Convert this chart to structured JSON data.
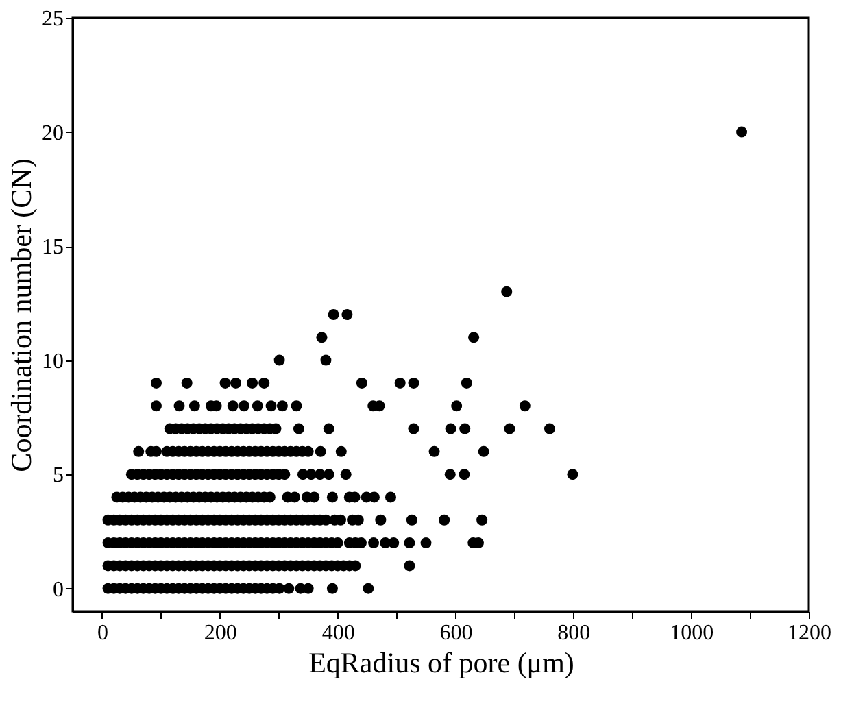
{
  "chart_data": {
    "type": "scatter",
    "xlabel": "EqRadius of pore (μm)",
    "ylabel": "Coordination number (CN)",
    "xlim": [
      -50,
      1200
    ],
    "ylim": [
      -1,
      25
    ],
    "xticks": [
      0,
      {
        "value": 100,
        "label": null
      },
      200,
      {
        "value": 300,
        "label": null
      },
      400,
      {
        "value": 500,
        "label": null
      },
      600,
      {
        "value": 700,
        "label": null
      },
      800,
      {
        "value": 900,
        "label": null
      },
      1000,
      {
        "value": 1100,
        "label": null
      },
      1200
    ],
    "yticks": [
      0,
      5,
      10,
      15,
      20,
      25
    ],
    "grid": false,
    "legend": false,
    "marker": "circle",
    "series": [
      {
        "color": "#000000",
        "x": [
          10,
          20,
          30,
          40,
          50,
          60,
          70,
          80,
          90,
          100,
          110,
          120,
          130,
          140,
          150,
          160,
          170,
          180,
          190,
          200,
          210,
          220,
          230,
          240,
          250,
          260,
          270,
          280,
          290,
          301,
          317,
          337,
          350,
          391,
          452
        ],
        "values": [
          0,
          0,
          0,
          0,
          0,
          0,
          0,
          0,
          0,
          0,
          0,
          0,
          0,
          0,
          0,
          0,
          0,
          0,
          0,
          0,
          0,
          0,
          0,
          0,
          0,
          0,
          0,
          0,
          0,
          0,
          0,
          0,
          0,
          0,
          0
        ]
      },
      {
        "color": "#000000",
        "x": [
          10,
          20,
          30,
          40,
          50,
          60,
          70,
          80,
          90,
          100,
          110,
          120,
          130,
          140,
          150,
          160,
          170,
          180,
          190,
          200,
          210,
          220,
          230,
          240,
          250,
          260,
          270,
          280,
          290,
          300,
          310,
          320,
          330,
          340,
          350,
          360,
          370,
          380,
          390,
          400,
          410,
          420,
          430,
          522
        ],
        "values": [
          1,
          1,
          1,
          1,
          1,
          1,
          1,
          1,
          1,
          1,
          1,
          1,
          1,
          1,
          1,
          1,
          1,
          1,
          1,
          1,
          1,
          1,
          1,
          1,
          1,
          1,
          1,
          1,
          1,
          1,
          1,
          1,
          1,
          1,
          1,
          1,
          1,
          1,
          1,
          1,
          1,
          1,
          1,
          1
        ]
      },
      {
        "color": "#000000",
        "x": [
          10,
          20,
          30,
          40,
          50,
          60,
          70,
          80,
          90,
          100,
          110,
          120,
          130,
          140,
          150,
          160,
          170,
          180,
          190,
          200,
          210,
          220,
          230,
          240,
          250,
          260,
          270,
          280,
          290,
          300,
          310,
          320,
          330,
          340,
          350,
          360,
          370,
          380,
          390,
          400,
          420,
          430,
          440,
          461,
          481,
          495,
          522,
          550,
          630,
          639
        ],
        "values": [
          2,
          2,
          2,
          2,
          2,
          2,
          2,
          2,
          2,
          2,
          2,
          2,
          2,
          2,
          2,
          2,
          2,
          2,
          2,
          2,
          2,
          2,
          2,
          2,
          2,
          2,
          2,
          2,
          2,
          2,
          2,
          2,
          2,
          2,
          2,
          2,
          2,
          2,
          2,
          2,
          2,
          2,
          2,
          2,
          2,
          2,
          2,
          2,
          2,
          2
        ]
      },
      {
        "color": "#000000",
        "x": [
          10,
          20,
          30,
          40,
          50,
          60,
          70,
          80,
          90,
          100,
          110,
          120,
          130,
          140,
          150,
          160,
          170,
          180,
          190,
          200,
          210,
          220,
          230,
          240,
          250,
          260,
          270,
          280,
          290,
          300,
          310,
          320,
          330,
          340,
          350,
          360,
          370,
          380,
          395,
          405,
          425,
          435,
          473,
          526,
          581,
          645
        ],
        "values": [
          3,
          3,
          3,
          3,
          3,
          3,
          3,
          3,
          3,
          3,
          3,
          3,
          3,
          3,
          3,
          3,
          3,
          3,
          3,
          3,
          3,
          3,
          3,
          3,
          3,
          3,
          3,
          3,
          3,
          3,
          3,
          3,
          3,
          3,
          3,
          3,
          3,
          3,
          3,
          3,
          3,
          3,
          3,
          3,
          3,
          3
        ]
      },
      {
        "color": "#000000",
        "x": [
          25,
          35,
          45,
          55,
          65,
          75,
          85,
          95,
          105,
          115,
          125,
          135,
          145,
          155,
          165,
          175,
          185,
          195,
          205,
          215,
          225,
          235,
          245,
          255,
          265,
          275,
          285,
          315,
          327,
          348,
          360,
          391,
          420,
          429,
          449,
          462,
          490
        ],
        "values": [
          4,
          4,
          4,
          4,
          4,
          4,
          4,
          4,
          4,
          4,
          4,
          4,
          4,
          4,
          4,
          4,
          4,
          4,
          4,
          4,
          4,
          4,
          4,
          4,
          4,
          4,
          4,
          4,
          4,
          4,
          4,
          4,
          4,
          4,
          4,
          4,
          4
        ]
      },
      {
        "color": "#000000",
        "x": [
          50,
          60,
          70,
          80,
          90,
          100,
          110,
          120,
          130,
          140,
          150,
          160,
          170,
          180,
          190,
          200,
          210,
          220,
          230,
          240,
          250,
          260,
          270,
          280,
          290,
          300,
          310,
          341,
          355,
          370,
          385,
          414,
          591,
          615,
          799
        ],
        "values": [
          5,
          5,
          5,
          5,
          5,
          5,
          5,
          5,
          5,
          5,
          5,
          5,
          5,
          5,
          5,
          5,
          5,
          5,
          5,
          5,
          5,
          5,
          5,
          5,
          5,
          5,
          5,
          5,
          5,
          5,
          5,
          5,
          5,
          5,
          5
        ]
      },
      {
        "color": "#000000",
        "x": [
          62,
          83,
          92,
          110,
          120,
          130,
          140,
          150,
          160,
          170,
          180,
          190,
          200,
          210,
          220,
          230,
          240,
          250,
          260,
          270,
          280,
          290,
          300,
          310,
          320,
          330,
          340,
          350,
          371,
          406,
          564,
          648
        ],
        "values": [
          6,
          6,
          6,
          6,
          6,
          6,
          6,
          6,
          6,
          6,
          6,
          6,
          6,
          6,
          6,
          6,
          6,
          6,
          6,
          6,
          6,
          6,
          6,
          6,
          6,
          6,
          6,
          6,
          6,
          6,
          6,
          6
        ]
      },
      {
        "color": "#000000",
        "x": [
          115,
          125,
          135,
          145,
          155,
          165,
          175,
          185,
          195,
          205,
          215,
          225,
          235,
          245,
          255,
          265,
          275,
          285,
          295,
          334,
          385,
          529,
          592,
          616,
          692,
          760
        ],
        "values": [
          7,
          7,
          7,
          7,
          7,
          7,
          7,
          7,
          7,
          7,
          7,
          7,
          7,
          7,
          7,
          7,
          7,
          7,
          7,
          7,
          7,
          7,
          7,
          7,
          7,
          7
        ]
      },
      {
        "color": "#000000",
        "x": [
          92,
          131,
          157,
          185,
          194,
          222,
          241,
          264,
          287,
          306,
          330,
          460,
          471,
          602,
          718
        ],
        "values": [
          8,
          8,
          8,
          8,
          8,
          8,
          8,
          8,
          8,
          8,
          8,
          8,
          8,
          8,
          8
        ]
      },
      {
        "color": "#000000",
        "x": [
          92,
          144,
          209,
          227,
          255,
          275,
          441,
          506,
          529,
          619
        ],
        "values": [
          9,
          9,
          9,
          9,
          9,
          9,
          9,
          9,
          9,
          9
        ]
      },
      {
        "color": "#000000",
        "x": [
          301,
          380,
          373,
          631,
          393,
          416,
          687,
          1086
        ],
        "values": [
          10,
          10,
          11,
          11,
          12,
          12,
          13,
          20
        ]
      }
    ]
  }
}
